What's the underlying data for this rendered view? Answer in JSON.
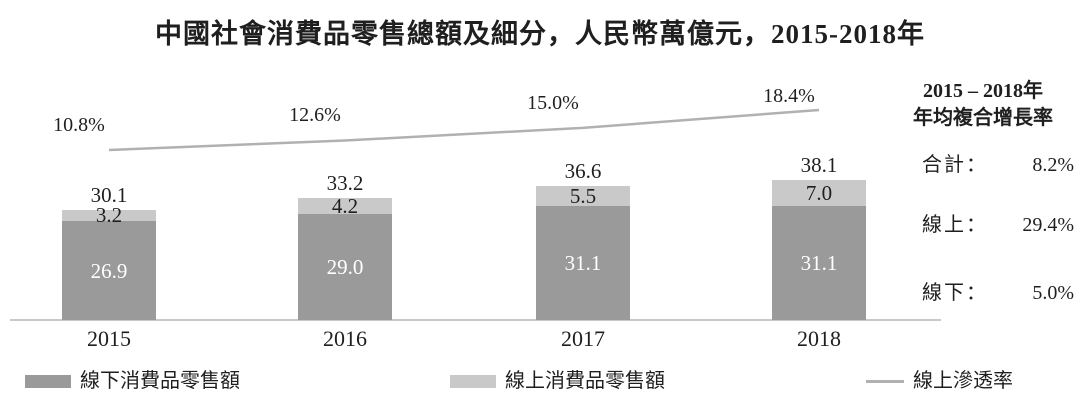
{
  "page_title": "中國社會消費品零售總額及細分，人民幣萬億元，2015-2018年",
  "chart_data": {
    "type": "bar",
    "subtype": "stacked-bars-with-line-overlay",
    "title": "中國社會消費品零售總額及細分，人民幣萬億元，2015-2018年",
    "unit_note": "人民幣萬億元",
    "categories": [
      "2015",
      "2016",
      "2017",
      "2018"
    ],
    "series": [
      {
        "name": "線下消費品零售額",
        "type": "bar",
        "stack_position": "bottom",
        "color": "#9a9a9a",
        "values": [
          26.9,
          29.0,
          31.1,
          31.1
        ],
        "labels": [
          "26.9",
          "29.0",
          "31.1",
          "31.1"
        ]
      },
      {
        "name": "線上消費品零售額",
        "type": "bar",
        "stack_position": "top",
        "color": "#c9c9c9",
        "values": [
          3.2,
          4.2,
          5.5,
          7.0
        ],
        "labels": [
          "3.2",
          "4.2",
          "5.5",
          "7.0"
        ]
      },
      {
        "name": "線上滲透率",
        "type": "line",
        "color": "#b1b1b1",
        "values": [
          10.8,
          12.6,
          15.0,
          18.4
        ],
        "labels": [
          "10.8%",
          "12.6%",
          "15.0%",
          "18.4%"
        ]
      }
    ],
    "totals": {
      "values": [
        30.1,
        33.2,
        36.6,
        38.1
      ],
      "labels": [
        "30.1",
        "33.2",
        "36.6",
        "38.1"
      ]
    },
    "ylim": [
      0,
      40
    ],
    "grid": false,
    "legend_position": "bottom"
  },
  "side_panel": {
    "heading_line1": "2015 – 2018年",
    "heading_line2": "年均複合增長率",
    "rows": [
      {
        "label": "合計：",
        "value": "8.2%"
      },
      {
        "label": "線上：",
        "value": "29.4%"
      },
      {
        "label": "線下：",
        "value": "5.0%"
      }
    ]
  },
  "legend": {
    "items": [
      {
        "label": "線下消費品零售額",
        "swatch": "dark-bar"
      },
      {
        "label": "線上消費品零售額",
        "swatch": "light-bar"
      },
      {
        "label": "線上滲透率",
        "swatch": "line"
      }
    ]
  },
  "colors": {
    "offline_bar": "#9a9a9a",
    "online_bar": "#c9c9c9",
    "trend_line": "#b1b1b1",
    "axis": "#c9c9c9",
    "text": "#1f1f1f",
    "bar_inner_label": "#ffffff"
  }
}
